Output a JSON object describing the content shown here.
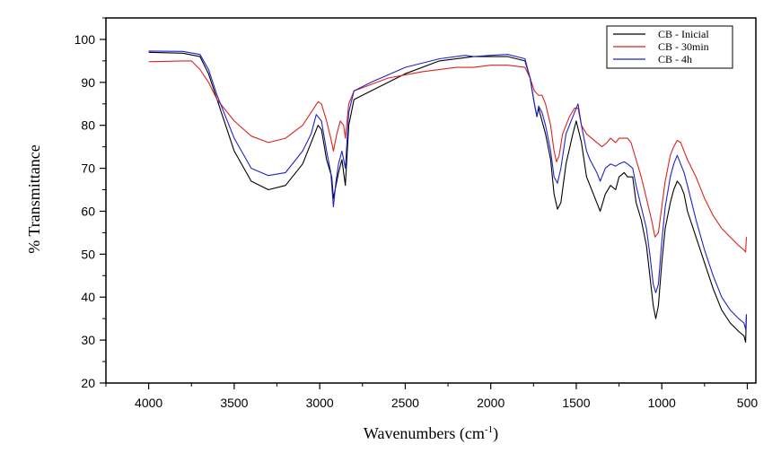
{
  "chart_data": {
    "type": "line",
    "xlabel": "Wavenumbers (cm",
    "xlabel_sup": "-1",
    "xlabel_close": ")",
    "ylabel": "% Transmittance",
    "xlim": [
      4250,
      450
    ],
    "ylim": [
      20,
      105
    ],
    "x_ticks": [
      4000,
      3500,
      3000,
      2500,
      2000,
      1500,
      1000,
      500
    ],
    "y_ticks": [
      20,
      30,
      40,
      50,
      60,
      70,
      80,
      90,
      100
    ],
    "x_reversed": true,
    "grid": false,
    "legend_position": "top-right",
    "series": [
      {
        "name": "CB - Inicial",
        "color": "#000000",
        "points": [
          [
            4000,
            97
          ],
          [
            3800,
            96.8
          ],
          [
            3700,
            96
          ],
          [
            3650,
            92
          ],
          [
            3600,
            86
          ],
          [
            3500,
            74
          ],
          [
            3400,
            67
          ],
          [
            3300,
            65
          ],
          [
            3200,
            66
          ],
          [
            3100,
            71
          ],
          [
            3050,
            76
          ],
          [
            3010,
            80
          ],
          [
            2990,
            79
          ],
          [
            2960,
            72
          ],
          [
            2930,
            68
          ],
          [
            2920,
            63
          ],
          [
            2905,
            66
          ],
          [
            2890,
            69
          ],
          [
            2870,
            72
          ],
          [
            2850,
            66
          ],
          [
            2830,
            80
          ],
          [
            2800,
            86
          ],
          [
            2700,
            88
          ],
          [
            2500,
            92
          ],
          [
            2300,
            95
          ],
          [
            2100,
            96
          ],
          [
            2000,
            96
          ],
          [
            1900,
            96
          ],
          [
            1800,
            95
          ],
          [
            1770,
            91
          ],
          [
            1745,
            85
          ],
          [
            1730,
            82
          ],
          [
            1720,
            84
          ],
          [
            1700,
            81
          ],
          [
            1680,
            78
          ],
          [
            1650,
            72
          ],
          [
            1630,
            64
          ],
          [
            1610,
            60.5
          ],
          [
            1590,
            62
          ],
          [
            1560,
            71
          ],
          [
            1520,
            78
          ],
          [
            1500,
            81
          ],
          [
            1470,
            76
          ],
          [
            1440,
            68
          ],
          [
            1420,
            66
          ],
          [
            1380,
            62
          ],
          [
            1360,
            60
          ],
          [
            1330,
            64
          ],
          [
            1300,
            66
          ],
          [
            1270,
            65
          ],
          [
            1250,
            68
          ],
          [
            1220,
            69
          ],
          [
            1200,
            68
          ],
          [
            1170,
            68
          ],
          [
            1150,
            62
          ],
          [
            1120,
            58
          ],
          [
            1090,
            52
          ],
          [
            1070,
            45
          ],
          [
            1050,
            38
          ],
          [
            1035,
            35
          ],
          [
            1020,
            38
          ],
          [
            1000,
            48
          ],
          [
            980,
            56
          ],
          [
            950,
            62
          ],
          [
            930,
            65
          ],
          [
            910,
            67
          ],
          [
            890,
            66
          ],
          [
            870,
            64
          ],
          [
            850,
            60
          ],
          [
            800,
            54
          ],
          [
            750,
            48
          ],
          [
            700,
            42
          ],
          [
            650,
            37
          ],
          [
            600,
            34
          ],
          [
            550,
            32
          ],
          [
            520,
            31
          ],
          [
            510,
            29.5
          ],
          [
            505,
            36
          ]
        ]
      },
      {
        "name": "CB - 30min",
        "color": "#dd2222",
        "points": [
          [
            4000,
            94.8
          ],
          [
            3800,
            95
          ],
          [
            3750,
            95
          ],
          [
            3700,
            93
          ],
          [
            3650,
            90
          ],
          [
            3600,
            86
          ],
          [
            3500,
            81
          ],
          [
            3400,
            77.5
          ],
          [
            3300,
            76
          ],
          [
            3200,
            77
          ],
          [
            3100,
            80
          ],
          [
            3050,
            83
          ],
          [
            3010,
            85.5
          ],
          [
            2990,
            85
          ],
          [
            2960,
            81
          ],
          [
            2935,
            77
          ],
          [
            2920,
            74
          ],
          [
            2900,
            78
          ],
          [
            2880,
            81
          ],
          [
            2860,
            80
          ],
          [
            2850,
            77
          ],
          [
            2830,
            85
          ],
          [
            2800,
            88
          ],
          [
            2600,
            91
          ],
          [
            2400,
            92.5
          ],
          [
            2200,
            93.5
          ],
          [
            2100,
            93.5
          ],
          [
            2000,
            94
          ],
          [
            1900,
            94
          ],
          [
            1800,
            93.5
          ],
          [
            1770,
            91
          ],
          [
            1745,
            88
          ],
          [
            1720,
            87
          ],
          [
            1700,
            87
          ],
          [
            1680,
            85
          ],
          [
            1650,
            80
          ],
          [
            1630,
            74
          ],
          [
            1615,
            71.5
          ],
          [
            1600,
            73
          ],
          [
            1580,
            78
          ],
          [
            1540,
            82
          ],
          [
            1510,
            84
          ],
          [
            1490,
            84
          ],
          [
            1470,
            80
          ],
          [
            1440,
            78
          ],
          [
            1410,
            77
          ],
          [
            1380,
            76
          ],
          [
            1350,
            75
          ],
          [
            1320,
            76
          ],
          [
            1300,
            77
          ],
          [
            1270,
            76
          ],
          [
            1250,
            77
          ],
          [
            1220,
            77
          ],
          [
            1200,
            77
          ],
          [
            1180,
            76
          ],
          [
            1150,
            72
          ],
          [
            1120,
            68
          ],
          [
            1090,
            63
          ],
          [
            1060,
            58
          ],
          [
            1040,
            54
          ],
          [
            1020,
            55
          ],
          [
            1000,
            61
          ],
          [
            980,
            67
          ],
          [
            950,
            73
          ],
          [
            930,
            75
          ],
          [
            910,
            76.5
          ],
          [
            890,
            76
          ],
          [
            870,
            74
          ],
          [
            850,
            72
          ],
          [
            800,
            68
          ],
          [
            750,
            63
          ],
          [
            700,
            59
          ],
          [
            650,
            56
          ],
          [
            600,
            54
          ],
          [
            550,
            52
          ],
          [
            520,
            51
          ],
          [
            510,
            50.5
          ],
          [
            505,
            54
          ]
        ]
      },
      {
        "name": "CB - 4h",
        "color": "#2222cc",
        "points": [
          [
            4000,
            97.3
          ],
          [
            3800,
            97.2
          ],
          [
            3700,
            96.5
          ],
          [
            3650,
            93
          ],
          [
            3600,
            87
          ],
          [
            3500,
            77
          ],
          [
            3400,
            70
          ],
          [
            3300,
            68.3
          ],
          [
            3200,
            69
          ],
          [
            3100,
            74
          ],
          [
            3050,
            78
          ],
          [
            3020,
            82.5
          ],
          [
            2990,
            81
          ],
          [
            2960,
            74
          ],
          [
            2935,
            69
          ],
          [
            2920,
            61
          ],
          [
            2905,
            67
          ],
          [
            2890,
            71
          ],
          [
            2870,
            74
          ],
          [
            2850,
            70
          ],
          [
            2830,
            83
          ],
          [
            2800,
            88
          ],
          [
            2700,
            90
          ],
          [
            2500,
            93.5
          ],
          [
            2300,
            95.5
          ],
          [
            2150,
            96.3
          ],
          [
            2100,
            96
          ],
          [
            2000,
            96.3
          ],
          [
            1900,
            96.5
          ],
          [
            1800,
            95.5
          ],
          [
            1770,
            91
          ],
          [
            1745,
            85
          ],
          [
            1730,
            82
          ],
          [
            1720,
            84.5
          ],
          [
            1700,
            83
          ],
          [
            1680,
            80
          ],
          [
            1650,
            74
          ],
          [
            1630,
            68
          ],
          [
            1610,
            66.5
          ],
          [
            1590,
            70
          ],
          [
            1560,
            78
          ],
          [
            1520,
            82
          ],
          [
            1500,
            84
          ],
          [
            1490,
            85
          ],
          [
            1470,
            80
          ],
          [
            1440,
            74
          ],
          [
            1420,
            72
          ],
          [
            1380,
            69
          ],
          [
            1360,
            67
          ],
          [
            1330,
            70
          ],
          [
            1300,
            71
          ],
          [
            1270,
            70.5
          ],
          [
            1250,
            71
          ],
          [
            1220,
            71.5
          ],
          [
            1200,
            71
          ],
          [
            1170,
            70
          ],
          [
            1150,
            66
          ],
          [
            1120,
            61
          ],
          [
            1090,
            56
          ],
          [
            1070,
            50
          ],
          [
            1050,
            43
          ],
          [
            1035,
            41
          ],
          [
            1020,
            43
          ],
          [
            1000,
            53
          ],
          [
            980,
            61
          ],
          [
            950,
            68
          ],
          [
            930,
            71
          ],
          [
            910,
            73
          ],
          [
            890,
            71
          ],
          [
            870,
            69
          ],
          [
            850,
            66
          ],
          [
            800,
            58
          ],
          [
            750,
            51
          ],
          [
            700,
            45
          ],
          [
            650,
            40
          ],
          [
            600,
            37
          ],
          [
            550,
            35
          ],
          [
            520,
            34
          ],
          [
            510,
            32.5
          ],
          [
            505,
            36
          ]
        ]
      }
    ]
  }
}
